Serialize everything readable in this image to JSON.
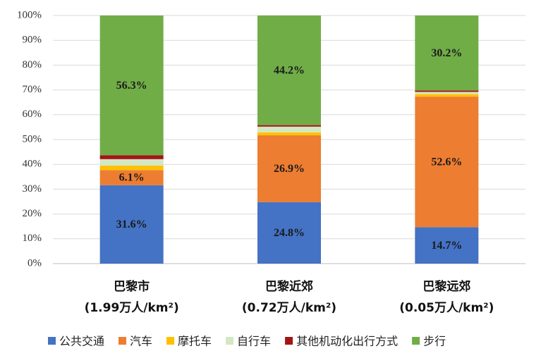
{
  "chart_data": {
    "type": "stacked-bar",
    "categories": [
      [
        "巴黎市",
        "(1.99万人/km²)"
      ],
      [
        "巴黎近郊",
        "(0.72万人/km²)"
      ],
      [
        "巴黎远郊",
        "(0.05万人/km²)"
      ]
    ],
    "series": [
      {
        "name": "公共交通",
        "color": "#4472c4",
        "values": [
          31.6,
          24.8,
          14.7
        ],
        "value_labels": [
          "31.6%",
          "24.8%",
          "14.7%"
        ]
      },
      {
        "name": "汽车",
        "color": "#ed7d31",
        "values": [
          6.1,
          26.9,
          52.6
        ],
        "value_labels": [
          "6.1%",
          "26.9%",
          "52.6%"
        ]
      },
      {
        "name": "摩托车",
        "color": "#ffc000",
        "values": [
          1.8,
          1.2,
          1.0
        ]
      },
      {
        "name": "自行车",
        "color": "#d4e7c4",
        "values": [
          2.6,
          2.3,
          0.9
        ]
      },
      {
        "name": "其他机动化出行方式",
        "color": "#a31515",
        "values": [
          1.6,
          0.6,
          0.6
        ]
      },
      {
        "name": "步行",
        "color": "#70ad47",
        "values": [
          56.3,
          44.2,
          30.2
        ],
        "value_labels": [
          "56.3%",
          "44.2%",
          "30.2%"
        ]
      }
    ],
    "ylim": [
      0,
      100
    ],
    "yticks": [
      {
        "value": 0,
        "label": "0%"
      },
      {
        "value": 10,
        "label": "10%"
      },
      {
        "value": 20,
        "label": "20%"
      },
      {
        "value": 30,
        "label": "30%"
      },
      {
        "value": 40,
        "label": "40%"
      },
      {
        "value": 50,
        "label": "50%"
      },
      {
        "value": 60,
        "label": "60%"
      },
      {
        "value": 70,
        "label": "70%"
      },
      {
        "value": 80,
        "label": "80%"
      },
      {
        "value": 90,
        "label": "90%"
      },
      {
        "value": 100,
        "label": "100%"
      }
    ],
    "grid": true,
    "legend": "bottom"
  }
}
